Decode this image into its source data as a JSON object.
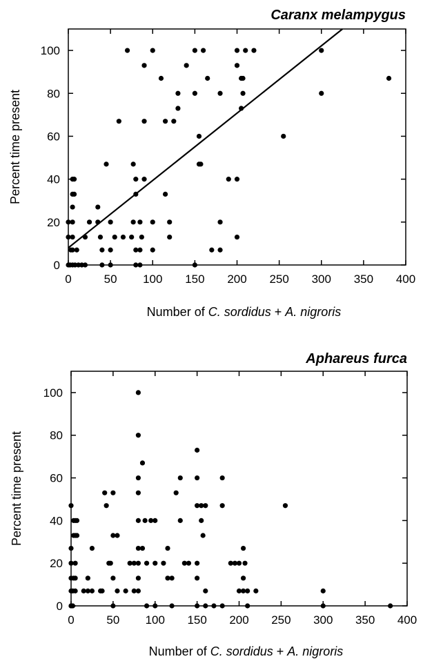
{
  "chart_data": [
    {
      "type": "scatter",
      "title": "Caranx   melampygus",
      "xlabel_parts": [
        {
          "text": "Number of ",
          "italic": false
        },
        {
          "text": "C. sordidus",
          "italic": true
        },
        {
          "text": " + ",
          "italic": false
        },
        {
          "text": "A. nigroris",
          "italic": true
        }
      ],
      "ylabel": "Percent time present",
      "xlim": [
        0,
        400
      ],
      "ylim": [
        0,
        110
      ],
      "xticks": [
        0,
        50,
        100,
        150,
        200,
        250,
        300,
        350,
        400
      ],
      "yticks": [
        0,
        20,
        40,
        60,
        80,
        100
      ],
      "regression_line": {
        "x": [
          0,
          325
        ],
        "y": [
          8,
          110
        ]
      },
      "points": [
        [
          0,
          0
        ],
        [
          2,
          0
        ],
        [
          5,
          0
        ],
        [
          8,
          0
        ],
        [
          12,
          0
        ],
        [
          16,
          0
        ],
        [
          20,
          0
        ],
        [
          40,
          0
        ],
        [
          50,
          0
        ],
        [
          80,
          0
        ],
        [
          85,
          0
        ],
        [
          150,
          0
        ],
        [
          0,
          13
        ],
        [
          5,
          13
        ],
        [
          10,
          7
        ],
        [
          5,
          7
        ],
        [
          3,
          7
        ],
        [
          0,
          20
        ],
        [
          5,
          20
        ],
        [
          5,
          27
        ],
        [
          5,
          33
        ],
        [
          7,
          33
        ],
        [
          5,
          40
        ],
        [
          7,
          40
        ],
        [
          20,
          13
        ],
        [
          25,
          20
        ],
        [
          35,
          20
        ],
        [
          35,
          27
        ],
        [
          38,
          13
        ],
        [
          40,
          7
        ],
        [
          45,
          47
        ],
        [
          50,
          20
        ],
        [
          50,
          7
        ],
        [
          55,
          13
        ],
        [
          60,
          67
        ],
        [
          65,
          13
        ],
        [
          70,
          100
        ],
        [
          75,
          13
        ],
        [
          77,
          20
        ],
        [
          77,
          47
        ],
        [
          80,
          7
        ],
        [
          80,
          33
        ],
        [
          80,
          40
        ],
        [
          85,
          20
        ],
        [
          85,
          7
        ],
        [
          87,
          13
        ],
        [
          90,
          40
        ],
        [
          90,
          67
        ],
        [
          90,
          93
        ],
        [
          100,
          100
        ],
        [
          100,
          20
        ],
        [
          100,
          7
        ],
        [
          110,
          87
        ],
        [
          115,
          33
        ],
        [
          115,
          67
        ],
        [
          120,
          20
        ],
        [
          120,
          13
        ],
        [
          125,
          67
        ],
        [
          130,
          80
        ],
        [
          130,
          73
        ],
        [
          140,
          93
        ],
        [
          150,
          100
        ],
        [
          150,
          80
        ],
        [
          155,
          60
        ],
        [
          155,
          47
        ],
        [
          157,
          47
        ],
        [
          160,
          100
        ],
        [
          165,
          87
        ],
        [
          170,
          7
        ],
        [
          180,
          7
        ],
        [
          180,
          20
        ],
        [
          180,
          80
        ],
        [
          190,
          40
        ],
        [
          200,
          93
        ],
        [
          200,
          100
        ],
        [
          200,
          40
        ],
        [
          200,
          13
        ],
        [
          205,
          73
        ],
        [
          205,
          87
        ],
        [
          207,
          80
        ],
        [
          207,
          87
        ],
        [
          210,
          100
        ],
        [
          220,
          100
        ],
        [
          255,
          60
        ],
        [
          300,
          100
        ],
        [
          300,
          80
        ],
        [
          380,
          87
        ]
      ]
    },
    {
      "type": "scatter",
      "title": "Aphareus   furca",
      "xlabel_parts": [
        {
          "text": "Number of ",
          "italic": false
        },
        {
          "text": "C. sordidus",
          "italic": true
        },
        {
          "text": " + ",
          "italic": false
        },
        {
          "text": "A. nigroris",
          "italic": true
        }
      ],
      "ylabel": "Percent time present",
      "xlim": [
        0,
        400
      ],
      "ylim": [
        0,
        110
      ],
      "xticks": [
        0,
        50,
        100,
        150,
        200,
        250,
        300,
        350,
        400
      ],
      "yticks": [
        0,
        20,
        40,
        60,
        80,
        100
      ],
      "points": [
        [
          0,
          0
        ],
        [
          2,
          0
        ],
        [
          0,
          7
        ],
        [
          2,
          7
        ],
        [
          5,
          7
        ],
        [
          0,
          13
        ],
        [
          3,
          13
        ],
        [
          5,
          13
        ],
        [
          0,
          20
        ],
        [
          5,
          20
        ],
        [
          0,
          27
        ],
        [
          3,
          33
        ],
        [
          5,
          33
        ],
        [
          7,
          33
        ],
        [
          0,
          47
        ],
        [
          3,
          40
        ],
        [
          5,
          40
        ],
        [
          7,
          40
        ],
        [
          15,
          7
        ],
        [
          20,
          7
        ],
        [
          25,
          7
        ],
        [
          20,
          13
        ],
        [
          25,
          27
        ],
        [
          35,
          7
        ],
        [
          37,
          7
        ],
        [
          40,
          53
        ],
        [
          42,
          47
        ],
        [
          45,
          20
        ],
        [
          47,
          20
        ],
        [
          50,
          13
        ],
        [
          50,
          33
        ],
        [
          50,
          53
        ],
        [
          55,
          33
        ],
        [
          55,
          7
        ],
        [
          65,
          7
        ],
        [
          70,
          20
        ],
        [
          75,
          20
        ],
        [
          75,
          7
        ],
        [
          80,
          100
        ],
        [
          80,
          80
        ],
        [
          80,
          60
        ],
        [
          80,
          53
        ],
        [
          80,
          40
        ],
        [
          80,
          27
        ],
        [
          80,
          20
        ],
        [
          80,
          13
        ],
        [
          80,
          7
        ],
        [
          85,
          67
        ],
        [
          85,
          27
        ],
        [
          88,
          40
        ],
        [
          90,
          20
        ],
        [
          95,
          40
        ],
        [
          100,
          20
        ],
        [
          100,
          40
        ],
        [
          110,
          20
        ],
        [
          115,
          27
        ],
        [
          115,
          13
        ],
        [
          120,
          13
        ],
        [
          125,
          53
        ],
        [
          130,
          60
        ],
        [
          130,
          40
        ],
        [
          135,
          20
        ],
        [
          140,
          20
        ],
        [
          150,
          73
        ],
        [
          150,
          60
        ],
        [
          150,
          47
        ],
        [
          150,
          20
        ],
        [
          150,
          13
        ],
        [
          155,
          47
        ],
        [
          157,
          33
        ],
        [
          155,
          40
        ],
        [
          160,
          47
        ],
        [
          160,
          7
        ],
        [
          150,
          0
        ],
        [
          160,
          0
        ],
        [
          170,
          0
        ],
        [
          180,
          0
        ],
        [
          180,
          47
        ],
        [
          180,
          60
        ],
        [
          190,
          20
        ],
        [
          195,
          20
        ],
        [
          200,
          20
        ],
        [
          200,
          7
        ],
        [
          205,
          13
        ],
        [
          205,
          27
        ],
        [
          207,
          20
        ],
        [
          205,
          7
        ],
        [
          210,
          7
        ],
        [
          220,
          7
        ],
        [
          255,
          47
        ],
        [
          300,
          7
        ],
        [
          300,
          0
        ],
        [
          380,
          0
        ],
        [
          0,
          0
        ],
        [
          50,
          0
        ],
        [
          90,
          0
        ],
        [
          100,
          0
        ],
        [
          120,
          0
        ],
        [
          210,
          0
        ]
      ]
    }
  ]
}
